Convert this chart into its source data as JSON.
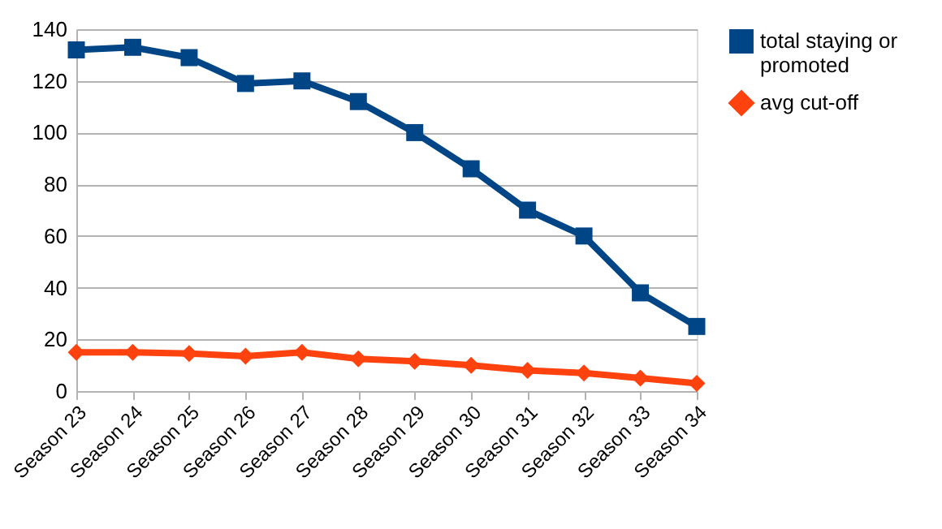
{
  "chart_data": {
    "type": "line",
    "categories": [
      "Season 23",
      "Season 24",
      "Season 25",
      "Season 26",
      "Season 27",
      "Season 28",
      "Season 29",
      "Season 30",
      "Season 31",
      "Season 32",
      "Season 33",
      "Season 34"
    ],
    "series": [
      {
        "name": "total staying or promoted",
        "color": "#004586",
        "marker": "square",
        "values": [
          132,
          133,
          129,
          119,
          120,
          112,
          100,
          86,
          70,
          60,
          38,
          25
        ]
      },
      {
        "name": "avg cut-off",
        "color": "#ff420e",
        "marker": "diamond",
        "values": [
          15,
          15,
          14.5,
          13.5,
          15,
          12.5,
          11.5,
          10,
          8,
          7,
          5,
          3
        ]
      }
    ],
    "ylim": [
      0,
      140
    ],
    "yticks": [
      0,
      20,
      40,
      60,
      80,
      100,
      120,
      140
    ],
    "grid": "y",
    "legend": "right"
  }
}
